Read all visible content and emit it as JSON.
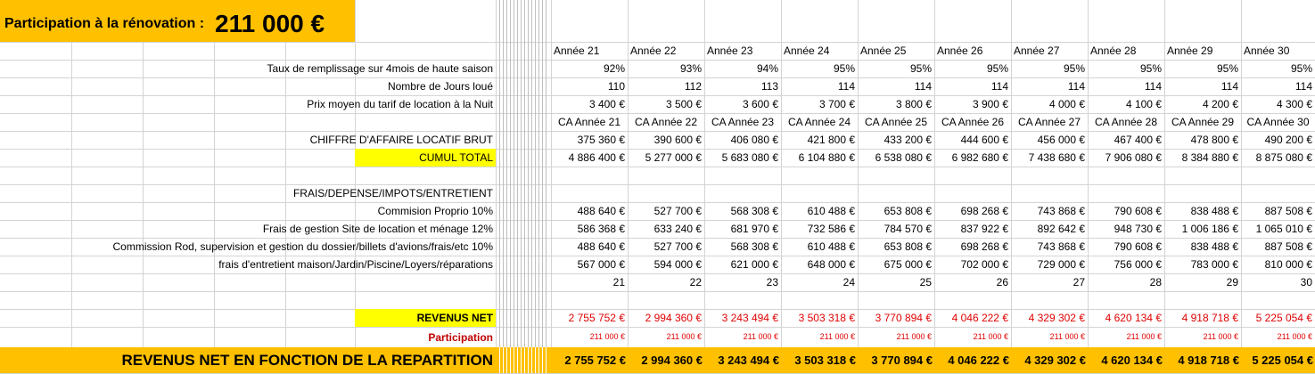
{
  "header": {
    "label": "Participation à la rénovation :",
    "amount": "211 000 €"
  },
  "years": [
    "Année 21",
    "Année 22",
    "Année 23",
    "Année 24",
    "Année 25",
    "Année 26",
    "Année 27",
    "Année 28",
    "Année 29",
    "Année 30"
  ],
  "rows": {
    "taux": {
      "label": "Taux de remplissage sur 4mois de haute saison",
      "values": [
        "92%",
        "93%",
        "94%",
        "95%",
        "95%",
        "95%",
        "95%",
        "95%",
        "95%",
        "95%"
      ]
    },
    "jours": {
      "label": "Nombre de Jours loué",
      "values": [
        "110",
        "112",
        "113",
        "114",
        "114",
        "114",
        "114",
        "114",
        "114",
        "114"
      ]
    },
    "prix": {
      "label": "Prix moyen du tarif de location à la Nuit",
      "values": [
        "3 400 €",
        "3 500 €",
        "3 600 €",
        "3 700 €",
        "3 800 €",
        "3 900 €",
        "4 000 €",
        "4 100 €",
        "4 200 €",
        "4 300 €"
      ]
    },
    "ca_header": {
      "values": [
        "CA Année 21",
        "CA Année 22",
        "CA Année 23",
        "CA Année 24",
        "CA Année 25",
        "CA Année 26",
        "CA Année 27",
        "CA Année 28",
        "CA Année 29",
        "CA Année 30"
      ]
    },
    "ca": {
      "label": "CHIFFRE D'AFFAIRE LOCATIF BRUT",
      "values": [
        "375 360 €",
        "390 600 €",
        "406 080 €",
        "421 800 €",
        "433 200 €",
        "444 600 €",
        "456 000 €",
        "467 400 €",
        "478 800 €",
        "490 200 €"
      ]
    },
    "cumul": {
      "label": "CUMUL TOTAL",
      "values": [
        "4 886 400 €",
        "5 277 000 €",
        "5 683 080 €",
        "6 104 880 €",
        "6 538 080 €",
        "6 982 680 €",
        "7 438 680 €",
        "7 906 080 €",
        "8 384 880 €",
        "8 875 080 €"
      ]
    },
    "frais_title": {
      "label": "FRAIS/DEPENSE/IMPOTS/ENTRETIENT"
    },
    "commission_proprio": {
      "label": "Commision Proprio 10%",
      "values": [
        "488 640 €",
        "527 700 €",
        "568 308 €",
        "610 488 €",
        "653 808 €",
        "698 268 €",
        "743 868 €",
        "790 608 €",
        "838 488 €",
        "887 508 €"
      ]
    },
    "frais_gestion": {
      "label": "Frais de gestion Site de location et ménage 12%",
      "values": [
        "586 368 €",
        "633 240 €",
        "681 970 €",
        "732 586 €",
        "784 570 €",
        "837 922 €",
        "892 642 €",
        "948 730 €",
        "1 006 186 €",
        "1 065 010 €"
      ]
    },
    "commission_rod": {
      "label": "Commission Rod, supervision et gestion du dossier/billets d'avions/frais/etc 10%",
      "values": [
        "488 640 €",
        "527 700 €",
        "568 308 €",
        "610 488 €",
        "653 808 €",
        "698 268 €",
        "743 868 €",
        "790 608 €",
        "838 488 €",
        "887 508 €"
      ]
    },
    "entretien": {
      "label": "frais d'entretient maison/Jardin/Piscine/Loyers/réparations",
      "values": [
        "567 000 €",
        "594 000 €",
        "621 000 €",
        "648 000 €",
        "675 000 €",
        "702 000 €",
        "729 000 €",
        "756 000 €",
        "783 000 €",
        "810 000 €"
      ]
    },
    "index": {
      "values": [
        "21",
        "22",
        "23",
        "24",
        "25",
        "26",
        "27",
        "28",
        "29",
        "30"
      ]
    },
    "revenus_net": {
      "label": "REVENUS NET",
      "values": [
        "2 755 752 €",
        "2 994 360 €",
        "3 243 494 €",
        "3 503 318 €",
        "3 770 894 €",
        "4 046 222 €",
        "4 329 302 €",
        "4 620 134 €",
        "4 918 718 €",
        "5 225 054 €"
      ]
    },
    "participation": {
      "label": "Participation",
      "values": [
        "211 000 €",
        "211 000 €",
        "211 000 €",
        "211 000 €",
        "211 000 €",
        "211 000 €",
        "211 000 €",
        "211 000 €",
        "211 000 €",
        "211 000 €"
      ]
    },
    "repartition": {
      "label": "REVENUS NET EN FONCTION DE LA REPARTITION",
      "values": [
        "2 755 752 €",
        "2 994 360 €",
        "3 243 494 €",
        "3 503 318 €",
        "3 770 894 €",
        "4 046 222 €",
        "4 329 302 €",
        "4 620 134 €",
        "4 918 718 €",
        "5 225 054 €"
      ]
    }
  },
  "colors": {
    "orange": "#ffc000",
    "yellow": "#ffff00",
    "red": "#e00000",
    "grid": "#d4d4d4"
  }
}
